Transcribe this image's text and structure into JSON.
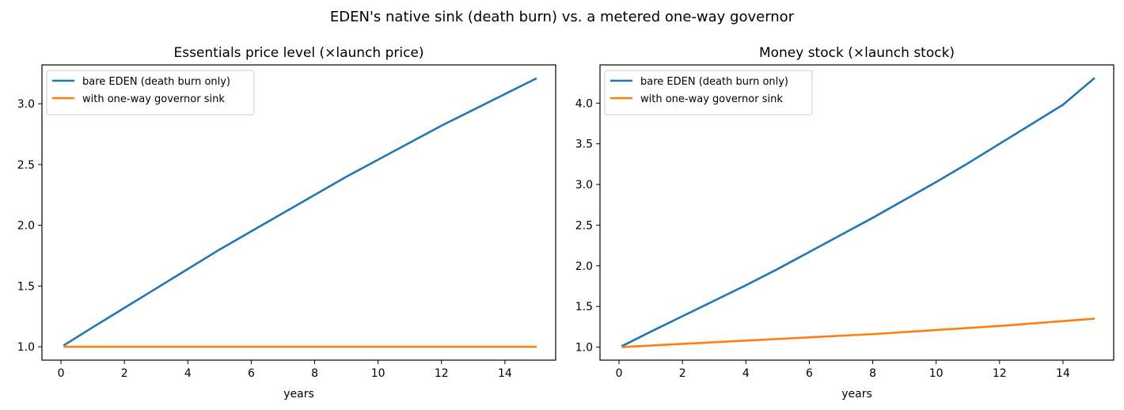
{
  "figure": {
    "title": "EDEN's native sink (death burn) vs. a metered one-way governor"
  },
  "colors": {
    "series_1": "#1f77b4",
    "series_2": "#ff7f0e"
  },
  "chart_data": [
    {
      "type": "line",
      "title": "Essentials price level (×launch price)",
      "xlabel": "years",
      "ylabel": "",
      "xlim": [
        -0.6,
        15.6
      ],
      "ylim": [
        0.89,
        3.32
      ],
      "xticks": [
        0,
        2,
        4,
        6,
        8,
        10,
        12,
        14
      ],
      "yticks": [
        1.0,
        1.5,
        2.0,
        2.5,
        3.0
      ],
      "ytick_labels": [
        "1.0",
        "1.5",
        "2.0",
        "2.5",
        "3.0"
      ],
      "grid": false,
      "legend_position": "upper-left",
      "series": [
        {
          "name": "bare EDEN (death burn only)",
          "color": "#1f77b4",
          "x": [
            0.08,
            1,
            2,
            3,
            4,
            5,
            6,
            7,
            8,
            9,
            10,
            11,
            12,
            13,
            14,
            15
          ],
          "y": [
            1.01,
            1.16,
            1.32,
            1.48,
            1.64,
            1.8,
            1.95,
            2.1,
            2.25,
            2.4,
            2.54,
            2.68,
            2.82,
            2.95,
            3.08,
            3.21
          ]
        },
        {
          "name": "with one-way governor sink",
          "color": "#ff7f0e",
          "x": [
            0.08,
            15
          ],
          "y": [
            1.0,
            1.0
          ]
        }
      ]
    },
    {
      "type": "line",
      "title": "Money stock (×launch stock)",
      "xlabel": "years",
      "ylabel": "",
      "xlim": [
        -0.6,
        15.6
      ],
      "ylim": [
        0.84,
        4.47
      ],
      "xticks": [
        0,
        2,
        4,
        6,
        8,
        10,
        12,
        14
      ],
      "yticks": [
        1.0,
        1.5,
        2.0,
        2.5,
        3.0,
        3.5,
        4.0
      ],
      "ytick_labels": [
        "1.0",
        "1.5",
        "2.0",
        "2.5",
        "3.0",
        "3.5",
        "4.0"
      ],
      "grid": false,
      "legend_position": "upper-left",
      "series": [
        {
          "name": "bare EDEN (death burn only)",
          "color": "#1f77b4",
          "x": [
            0.08,
            1,
            2,
            3,
            4,
            5,
            6,
            7,
            8,
            9,
            10,
            11,
            12,
            13,
            14,
            15
          ],
          "y": [
            1.01,
            1.19,
            1.38,
            1.57,
            1.76,
            1.96,
            2.17,
            2.38,
            2.59,
            2.81,
            3.03,
            3.26,
            3.5,
            3.74,
            3.98,
            4.31
          ]
        },
        {
          "name": "with one-way governor sink",
          "color": "#ff7f0e",
          "x": [
            0.08,
            2,
            4,
            6,
            8,
            10,
            12,
            15
          ],
          "y": [
            1.0,
            1.04,
            1.08,
            1.12,
            1.16,
            1.21,
            1.26,
            1.35
          ]
        }
      ]
    }
  ]
}
